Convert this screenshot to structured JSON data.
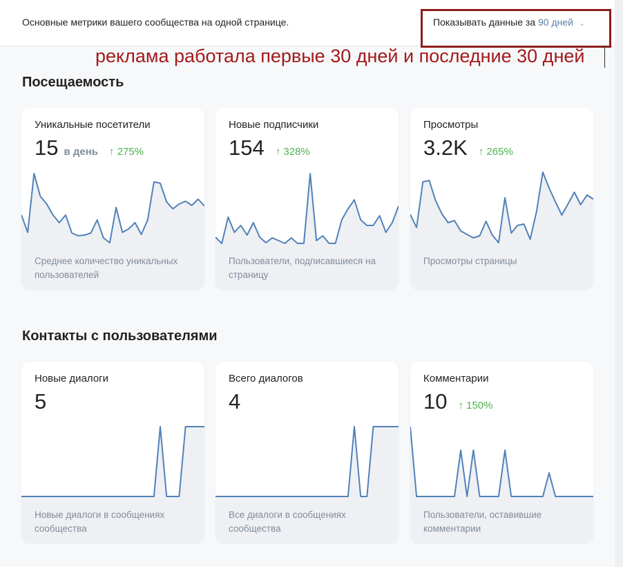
{
  "header": {
    "description": "Основные метрики вашего сообщества на одной странице.",
    "period_label": "Показывать данные за",
    "period_value": "90 дней",
    "period_icon": "chevron-down-icon"
  },
  "annotation": "реклама работала первые 30 дней и последние 30 дней",
  "colors": {
    "line": "#5181b8",
    "area": "#eef0f4",
    "positive": "#4bb34b",
    "annotation": "#a31a1a"
  },
  "sections": [
    {
      "title": "Посещаемость",
      "cards": [
        {
          "title": "Уникальные посетители",
          "value": "15",
          "unit": "в день",
          "delta": "↑ 275%",
          "description": "Среднее количество уникальных пользователей",
          "series": [
            49,
            24,
            109,
            76,
            65,
            49,
            38,
            49,
            23,
            19,
            20,
            23,
            42,
            16,
            9,
            60,
            24,
            29,
            38,
            21,
            42,
            97,
            95,
            68,
            58,
            65,
            69,
            63,
            72,
            62
          ]
        },
        {
          "title": "Новые подписчики",
          "value": "154",
          "unit": "",
          "delta": "↑ 328%",
          "description": "Пользователи, подписавшиеся на страницу",
          "series": [
            17,
            8,
            46,
            24,
            34,
            20,
            38,
            17,
            9,
            16,
            12,
            8,
            16,
            8,
            8,
            109,
            12,
            19,
            8,
            8,
            42,
            58,
            71,
            42,
            34,
            34,
            48,
            24,
            38,
            62
          ]
        },
        {
          "title": "Просмотры",
          "value": "3.2K",
          "unit": "",
          "delta": "↑ 265%",
          "description": "Просмотры страницы",
          "series": [
            50,
            31,
            97,
            99,
            70,
            51,
            38,
            41,
            26,
            21,
            16,
            19,
            40,
            20,
            9,
            74,
            23,
            34,
            36,
            14,
            54,
            111,
            88,
            68,
            49,
            65,
            82,
            64,
            78,
            72
          ]
        }
      ]
    },
    {
      "title": "Контакты с пользователями",
      "cards": [
        {
          "title": "Новые диалоги",
          "value": "5",
          "unit": "",
          "delta": "",
          "description": "Новые диалоги в сообщениях сообщества",
          "series": [
            9,
            9,
            9,
            9,
            9,
            9,
            9,
            9,
            9,
            9,
            9,
            9,
            9,
            9,
            9,
            9,
            9,
            9,
            9,
            9,
            9,
            9,
            110,
            9,
            9,
            9,
            110,
            110,
            110,
            110
          ]
        },
        {
          "title": "Всего диалогов",
          "value": "4",
          "unit": "",
          "delta": "",
          "description": "Все диалоги в сообщениях сообщества",
          "series": [
            9,
            9,
            9,
            9,
            9,
            9,
            9,
            9,
            9,
            9,
            9,
            9,
            9,
            9,
            9,
            9,
            9,
            9,
            9,
            9,
            9,
            9,
            110,
            9,
            9,
            110,
            110,
            110,
            110,
            110
          ]
        },
        {
          "title": "Комментарии",
          "value": "10",
          "unit": "",
          "delta": "↑ 150%",
          "description": "Пользователи, оставившие комментарии",
          "series": [
            110,
            9,
            9,
            9,
            9,
            9,
            9,
            9,
            76,
            9,
            76,
            9,
            9,
            9,
            9,
            76,
            9,
            9,
            9,
            9,
            9,
            9,
            43,
            9,
            9,
            9,
            9,
            9,
            9,
            9
          ]
        }
      ]
    }
  ]
}
